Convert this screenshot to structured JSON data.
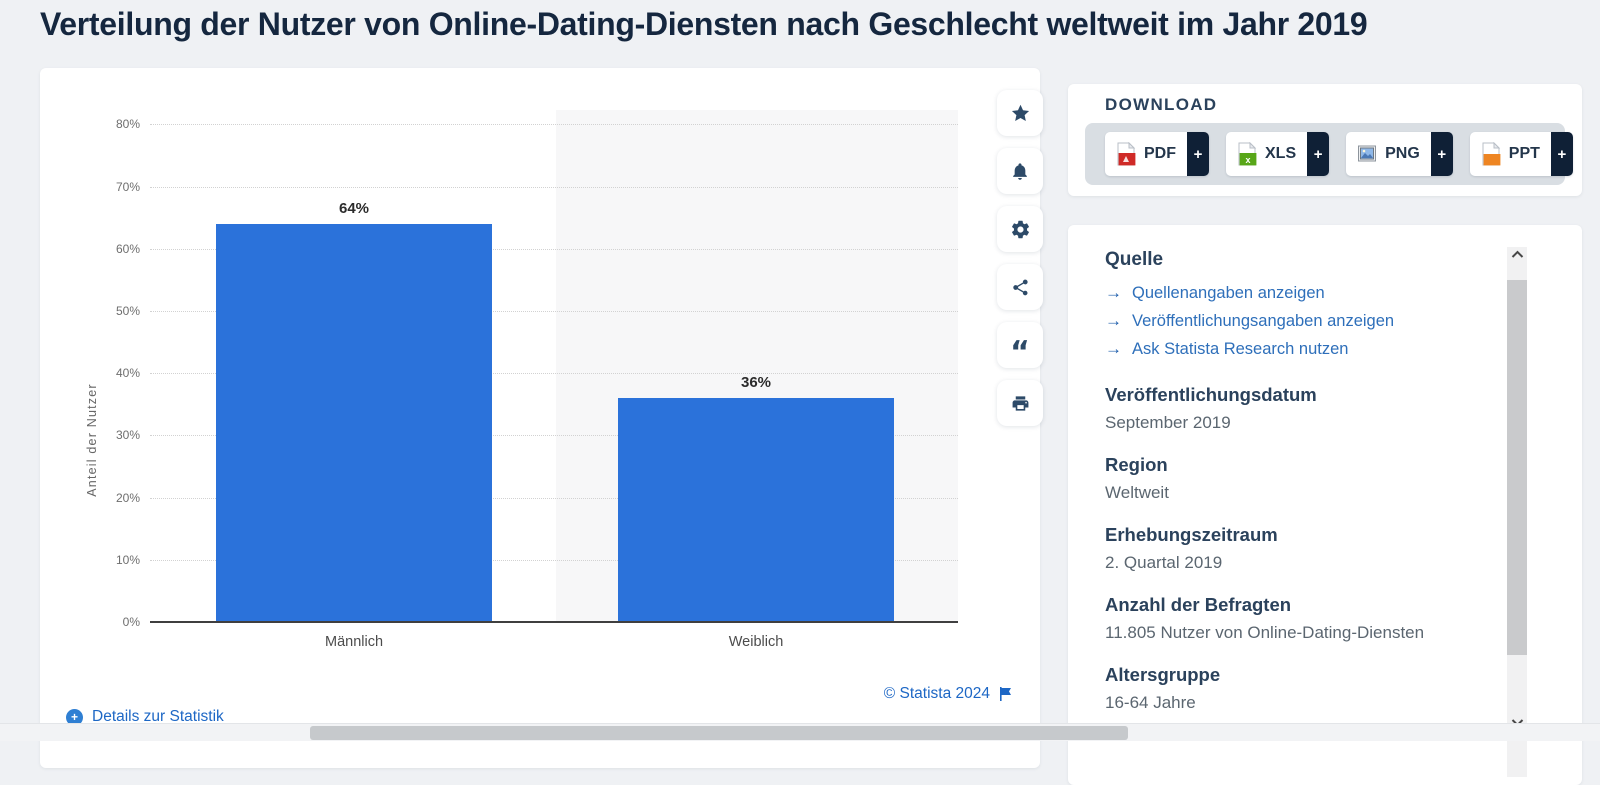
{
  "page": {
    "title": "Verteilung der Nutzer von Online-Dating-Diensten nach Geschlecht weltweit im Jahr 2019"
  },
  "chart_data": {
    "type": "bar",
    "categories": [
      "Männlich",
      "Weiblich"
    ],
    "values": [
      64,
      36
    ],
    "value_labels": [
      "64%",
      "36%"
    ],
    "title": "Verteilung der Nutzer von Online-Dating-Diensten nach Geschlecht weltweit im Jahr 2019",
    "xlabel": "",
    "ylabel": "Anteil der Nutzer",
    "ylim": [
      0,
      80
    ],
    "yticks": [
      "0%",
      "10%",
      "20%",
      "30%",
      "40%",
      "50%",
      "60%",
      "70%",
      "80%"
    ],
    "grid": "horizontal-dotted",
    "legend": "none",
    "bar_color": "#2b72da",
    "plot_band_color": "#f7f7f8"
  },
  "toolbar": {
    "icons": [
      "favorite-star",
      "notifications-bell",
      "settings-gear",
      "share-nodes",
      "cite-quote",
      "print"
    ]
  },
  "download": {
    "heading": "DOWNLOAD",
    "plus_label": "+",
    "buttons": [
      {
        "label": "PDF",
        "icon": "pdf-file-icon"
      },
      {
        "label": "XLS",
        "icon": "xls-file-icon"
      },
      {
        "label": "PNG",
        "icon": "png-image-icon"
      },
      {
        "label": "PPT",
        "icon": "ppt-file-icon"
      }
    ]
  },
  "info": {
    "source_heading": "Quelle",
    "arrow_glyph": "→",
    "links": [
      "Quellenangaben anzeigen",
      "Veröffentlichungsangaben anzeigen",
      "Ask Statista Research nutzen"
    ],
    "fields": [
      {
        "label": "Veröffentlichungsdatum",
        "value": "September 2019"
      },
      {
        "label": "Region",
        "value": "Weltweit"
      },
      {
        "label": "Erhebungszeitraum",
        "value": "2. Quartal 2019"
      },
      {
        "label": "Anzahl der Befragten",
        "value": "11.805 Nutzer von Online-Dating-Diensten"
      },
      {
        "label": "Altersgruppe",
        "value": "16-64 Jahre"
      }
    ]
  },
  "footer": {
    "copyright": "© Statista 2024",
    "details_link": "Details zur Statistik"
  },
  "colors": {
    "accent_blue": "#2b72da",
    "link_blue": "#2e6fba",
    "navy_text": "#15273f",
    "dark_strip": "#0f2036",
    "page_bg": "#eff1f4"
  }
}
